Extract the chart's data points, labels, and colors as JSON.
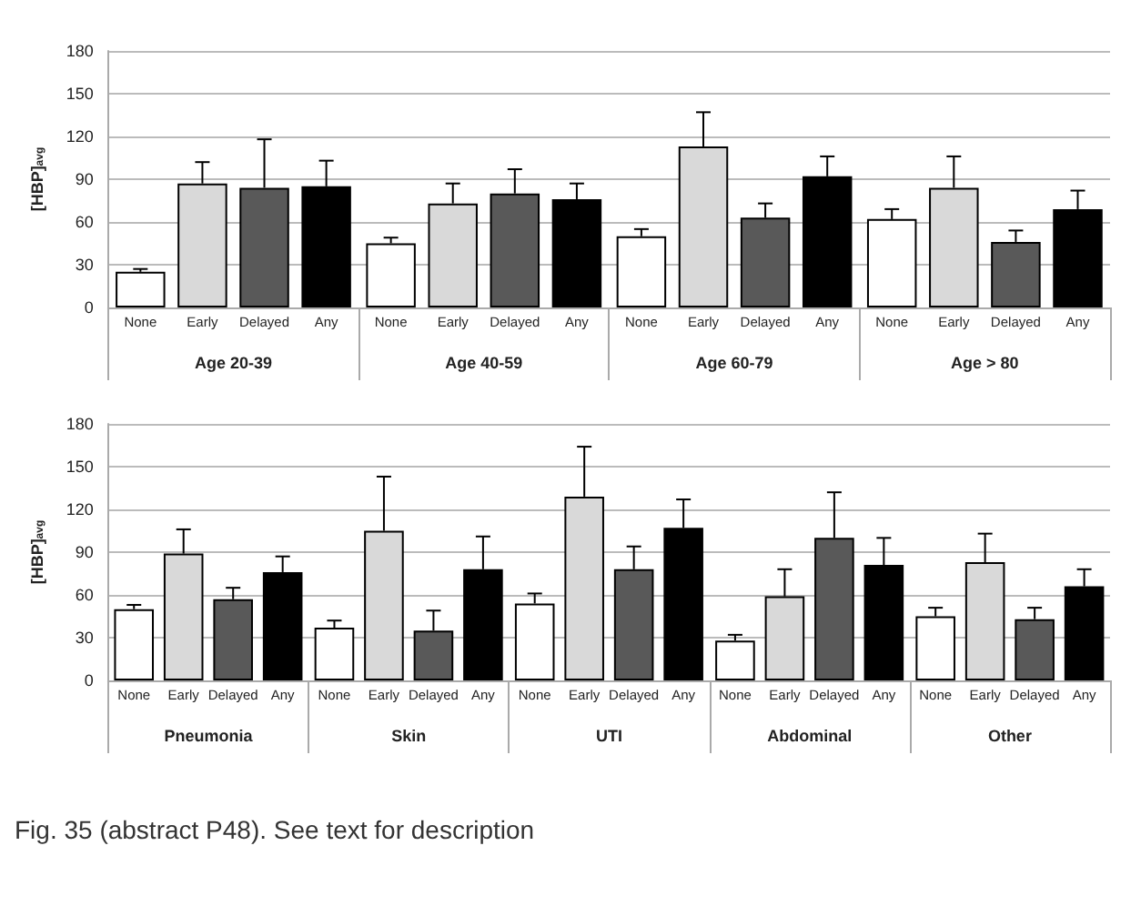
{
  "chart_data": [
    {
      "type": "bar",
      "ylabel": "[HBP]$_{avg}$",
      "categories": [
        "Age 20-39",
        "Age 40-59",
        "Age 60-79",
        "Age > 80"
      ],
      "ylim": [
        0,
        180
      ],
      "yticks": [
        0,
        30,
        60,
        90,
        120,
        150,
        180
      ],
      "grid": "y",
      "legend": false,
      "series": [
        {
          "name": "None",
          "color": "#ffffff",
          "values": [
            25,
            45,
            50,
            62
          ],
          "errors": [
            [
              25,
              27
            ],
            [
              45,
              49
            ],
            [
              50,
              55
            ],
            [
              62,
              69
            ]
          ]
        },
        {
          "name": "Early",
          "color": "#d9d9d9",
          "values": [
            87,
            73,
            113,
            84
          ],
          "errors": [
            [
              87,
              102
            ],
            [
              73,
              87
            ],
            [
              113,
              137
            ],
            [
              84,
              106
            ]
          ]
        },
        {
          "name": "Delayed",
          "color": "#595959",
          "values": [
            84,
            80,
            63,
            46
          ],
          "errors": [
            [
              84,
              118
            ],
            [
              80,
              97
            ],
            [
              63,
              73
            ],
            [
              46,
              54
            ]
          ]
        },
        {
          "name": "Any",
          "color": "#000000",
          "values": [
            85,
            76,
            92,
            69
          ],
          "errors": [
            [
              85,
              103
            ],
            [
              76,
              87
            ],
            [
              92,
              106
            ],
            [
              69,
              82
            ]
          ]
        }
      ]
    },
    {
      "type": "bar",
      "ylabel": "[HBP]$_{avg}$",
      "categories": [
        "Pneumonia",
        "Skin",
        "UTI",
        "Abdominal",
        "Other"
      ],
      "ylim": [
        0,
        180
      ],
      "yticks": [
        0,
        30,
        60,
        90,
        120,
        150,
        180
      ],
      "grid": "y",
      "legend": false,
      "annotations": [
        "Fig. 35 (abstract P48). See text for description"
      ],
      "series": [
        {
          "name": "None",
          "color": "#ffffff",
          "values": [
            50,
            37,
            54,
            28,
            45
          ],
          "errors": [
            [
              50,
              53
            ],
            [
              37,
              42
            ],
            [
              54,
              61
            ],
            [
              28,
              32
            ],
            [
              45,
              51
            ]
          ]
        },
        {
          "name": "Early",
          "color": "#d9d9d9",
          "values": [
            89,
            105,
            129,
            59,
            83
          ],
          "errors": [
            [
              89,
              106
            ],
            [
              105,
              143
            ],
            [
              129,
              164
            ],
            [
              59,
              78
            ],
            [
              83,
              103
            ]
          ]
        },
        {
          "name": "Delayed",
          "color": "#595959",
          "values": [
            57,
            35,
            78,
            100,
            43
          ],
          "errors": [
            [
              57,
              65
            ],
            [
              35,
              49
            ],
            [
              78,
              94
            ],
            [
              100,
              132
            ],
            [
              43,
              51
            ]
          ]
        },
        {
          "name": "Any",
          "color": "#000000",
          "values": [
            76,
            78,
            107,
            81,
            66
          ],
          "errors": [
            [
              76,
              87
            ],
            [
              78,
              101
            ],
            [
              107,
              127
            ],
            [
              81,
              100
            ],
            [
              66,
              78
            ]
          ]
        }
      ]
    }
  ]
}
